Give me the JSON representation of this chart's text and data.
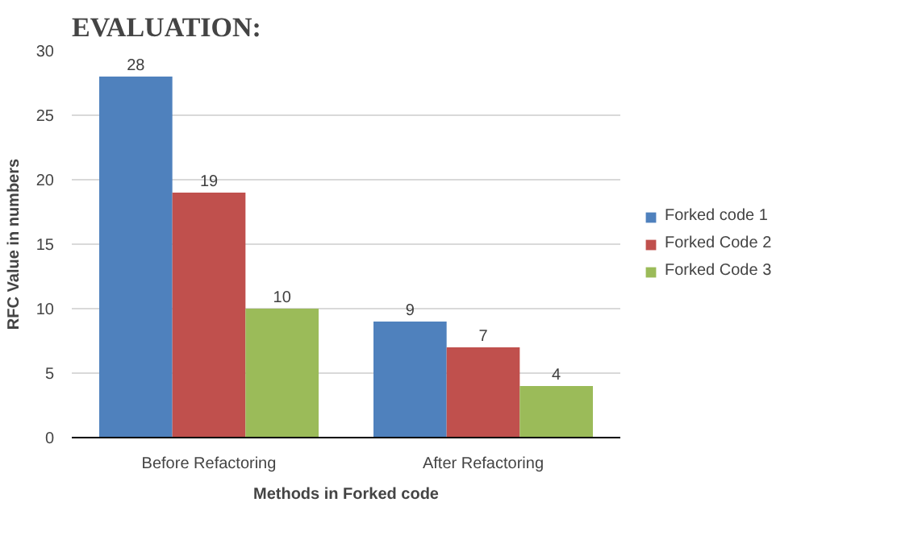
{
  "chart_data": {
    "type": "bar",
    "title": "EVALUATION:",
    "xlabel": "Methods in Forked code",
    "ylabel": "RFC Value in numbers",
    "categories": [
      "Before Refactoring",
      "After Refactoring"
    ],
    "series": [
      {
        "name": "Forked code 1",
        "color": "#4f81bd",
        "values": [
          28,
          9
        ]
      },
      {
        "name": "Forked Code 2",
        "color": "#c0504d",
        "values": [
          19,
          7
        ]
      },
      {
        "name": "Forked Code 3",
        "color": "#9bbb59",
        "values": [
          10,
          4
        ]
      }
    ],
    "ylim": [
      0,
      30
    ],
    "yticks": [
      0,
      5,
      10,
      15,
      20,
      25,
      30
    ],
    "grid": "y",
    "legend": "right",
    "data_labels": true
  }
}
